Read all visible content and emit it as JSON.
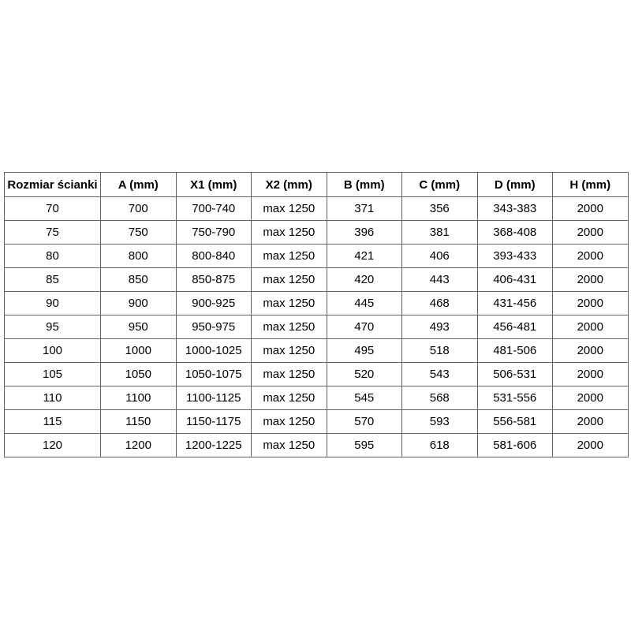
{
  "table": {
    "headers": [
      "Rozmiar ścianki",
      "A (mm)",
      "X1 (mm)",
      "X2 (mm)",
      "B (mm)",
      "C (mm)",
      "D (mm)",
      "H (mm)"
    ],
    "rows": [
      [
        "70",
        "700",
        "700-740",
        "max 1250",
        "371",
        "356",
        "343-383",
        "2000"
      ],
      [
        "75",
        "750",
        "750-790",
        "max 1250",
        "396",
        "381",
        "368-408",
        "2000"
      ],
      [
        "80",
        "800",
        "800-840",
        "max 1250",
        "421",
        "406",
        "393-433",
        "2000"
      ],
      [
        "85",
        "850",
        "850-875",
        "max 1250",
        "420",
        "443",
        "406-431",
        "2000"
      ],
      [
        "90",
        "900",
        "900-925",
        "max 1250",
        "445",
        "468",
        "431-456",
        "2000"
      ],
      [
        "95",
        "950",
        "950-975",
        "max 1250",
        "470",
        "493",
        "456-481",
        "2000"
      ],
      [
        "100",
        "1000",
        "1000-1025",
        "max 1250",
        "495",
        "518",
        "481-506",
        "2000"
      ],
      [
        "105",
        "1050",
        "1050-1075",
        "max 1250",
        "520",
        "543",
        "506-531",
        "2000"
      ],
      [
        "110",
        "1100",
        "1100-1125",
        "max 1250",
        "545",
        "568",
        "531-556",
        "2000"
      ],
      [
        "115",
        "1150",
        "1150-1175",
        "max 1250",
        "570",
        "593",
        "556-581",
        "2000"
      ],
      [
        "120",
        "1200",
        "1200-1225",
        "max 1250",
        "595",
        "618",
        "581-606",
        "2000"
      ]
    ],
    "colors": {
      "border": "#636363",
      "text": "#000000",
      "background": "#ffffff"
    }
  }
}
